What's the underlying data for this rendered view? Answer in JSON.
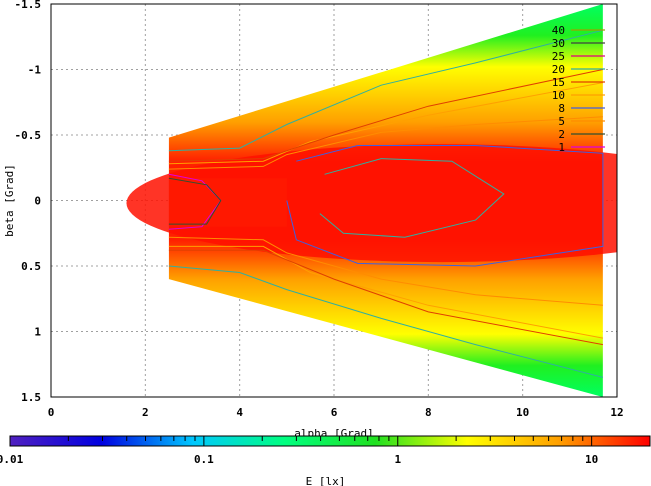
{
  "chart_data": {
    "type": "heatmap",
    "xlabel": "alpha [Grad]",
    "ylabel": "beta [Grad]",
    "xlim": [
      0,
      12
    ],
    "ylim": [
      -1.5,
      1.5
    ],
    "y_axis_inverted": true,
    "grid": true,
    "x_ticks": [
      "0",
      "2",
      "4",
      "6",
      "8",
      "10",
      "12"
    ],
    "y_ticks": [
      "-1.5",
      "-1",
      "-0.5",
      "0",
      "0.5",
      "1",
      "1.5"
    ],
    "contour_levels": [
      "40",
      "30",
      "25",
      "20",
      "15",
      "10",
      "8",
      "5",
      "2",
      "1"
    ],
    "contour_colors": [
      "#a0a000",
      "#404040",
      "#e00080",
      "#30b0a0",
      "#e04000",
      "#ffa000",
      "#4060e0",
      "#ff8c00",
      "#305030",
      "#e000e0"
    ],
    "legend_position": "top-right",
    "colorbar": {
      "label": "E [lx]",
      "scale": "log",
      "range": [
        0.01,
        20
      ],
      "tick_labels": [
        "0.01",
        "0.1",
        "1",
        "10"
      ],
      "colors": [
        "#5020c0",
        "#0000e0",
        "#00c8ff",
        "#00ff80",
        "#20e020",
        "#ffff00",
        "#ffa000",
        "#ff0000"
      ]
    },
    "region": {
      "alpha_min": 2.5,
      "alpha_max": 11.7,
      "beta_top_at_alpha_min": -0.48,
      "beta_bottom_at_alpha_min": 0.6,
      "beta_top_at_alpha_max": -1.5,
      "beta_bottom_at_alpha_max": 1.5
    },
    "contours": [
      {
        "level": "1",
        "points": [
          [
            2.5,
            -0.2
          ],
          [
            3.2,
            -0.15
          ],
          [
            3.6,
            0
          ],
          [
            3.2,
            0.2
          ],
          [
            2.5,
            0.22
          ]
        ]
      },
      {
        "level": "2",
        "points": [
          [
            2.5,
            -0.17
          ],
          [
            3.3,
            -0.12
          ],
          [
            3.6,
            0
          ],
          [
            3.3,
            0.18
          ],
          [
            2.5,
            0.18
          ]
        ]
      },
      {
        "level": "5",
        "points": [
          [
            2.5,
            -0.24
          ],
          [
            4.5,
            -0.26
          ],
          [
            5.0,
            -0.35
          ],
          [
            7,
            -0.52
          ],
          [
            9,
            -0.58
          ],
          [
            11.7,
            -0.64
          ]
        ]
      },
      {
        "level": "5b",
        "points": [
          [
            2.5,
            0.28
          ],
          [
            4.5,
            0.3
          ],
          [
            5.0,
            0.4
          ],
          [
            7,
            0.6
          ],
          [
            9,
            0.72
          ],
          [
            11.7,
            0.8
          ]
        ]
      },
      {
        "level": "8",
        "points": [
          [
            5.2,
            -0.3
          ],
          [
            6.5,
            -0.42
          ],
          [
            9,
            -0.42
          ],
          [
            11.7,
            -0.36
          ],
          [
            11.7,
            0.35
          ],
          [
            9,
            0.5
          ],
          [
            6.5,
            0.48
          ],
          [
            5.2,
            0.3
          ],
          [
            5.0,
            0
          ]
        ]
      },
      {
        "level": "10",
        "points": [
          [
            2.5,
            -0.28
          ],
          [
            4.5,
            -0.3
          ],
          [
            5.5,
            -0.45
          ],
          [
            8,
            -0.65
          ],
          [
            11.7,
            -0.9
          ]
        ]
      },
      {
        "level": "10b",
        "points": [
          [
            2.5,
            0.35
          ],
          [
            4.5,
            0.35
          ],
          [
            5.5,
            0.55
          ],
          [
            8,
            0.8
          ],
          [
            11.7,
            1.05
          ]
        ]
      },
      {
        "level": "15",
        "points": [
          [
            2.5,
            -0.3
          ],
          [
            4.5,
            -0.32
          ],
          [
            6,
            -0.5
          ],
          [
            8,
            -0.72
          ],
          [
            11.7,
            -1.0
          ]
        ]
      },
      {
        "level": "15b",
        "points": [
          [
            2.5,
            0.38
          ],
          [
            4.5,
            0.38
          ],
          [
            6,
            0.6
          ],
          [
            8,
            0.85
          ],
          [
            11.7,
            1.1
          ]
        ]
      },
      {
        "level": "20",
        "points": [
          [
            5.8,
            -0.2
          ],
          [
            7,
            -0.32
          ],
          [
            8.5,
            -0.3
          ],
          [
            9.6,
            -0.05
          ],
          [
            9,
            0.15
          ],
          [
            7.5,
            0.28
          ],
          [
            6.2,
            0.25
          ],
          [
            5.7,
            0.1
          ]
        ]
      },
      {
        "level": "20b",
        "points": [
          [
            2.5,
            -0.38
          ],
          [
            4,
            -0.4
          ],
          [
            5,
            -0.58
          ],
          [
            7,
            -0.88
          ],
          [
            9,
            -1.05
          ],
          [
            11.7,
            -1.3
          ]
        ]
      },
      {
        "level": "20c",
        "points": [
          [
            2.5,
            0.5
          ],
          [
            4,
            0.55
          ],
          [
            5,
            0.68
          ],
          [
            7,
            0.9
          ],
          [
            9,
            1.1
          ],
          [
            11.7,
            1.35
          ]
        ]
      }
    ]
  }
}
